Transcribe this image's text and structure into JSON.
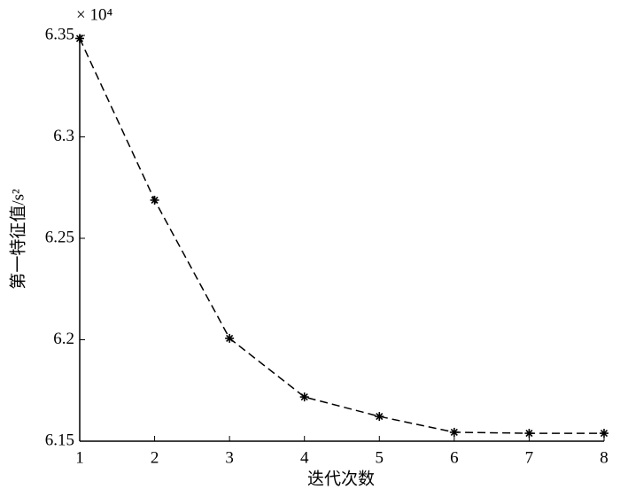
{
  "chart_data": {
    "type": "line",
    "y_multiplier": "× 10⁴",
    "x_label": "迭代次数",
    "y_label": "第一特征值/s²",
    "x": [
      1,
      2,
      3,
      4,
      5,
      6,
      7,
      8
    ],
    "series": [
      {
        "color": "#000000",
        "line_style": "dashed",
        "marker": "*",
        "values": [
          6.3485,
          6.2688,
          6.2007,
          6.1718,
          6.1622,
          6.1544,
          6.1539,
          6.1539
        ]
      }
    ],
    "xlim": [
      1,
      8
    ],
    "xticks": [
      1,
      2,
      3,
      4,
      5,
      6,
      7,
      8
    ],
    "ylim": [
      6.15,
      6.35
    ],
    "yticks": [
      6.15,
      6.2,
      6.25,
      6.3,
      6.35
    ],
    "grid": false
  }
}
